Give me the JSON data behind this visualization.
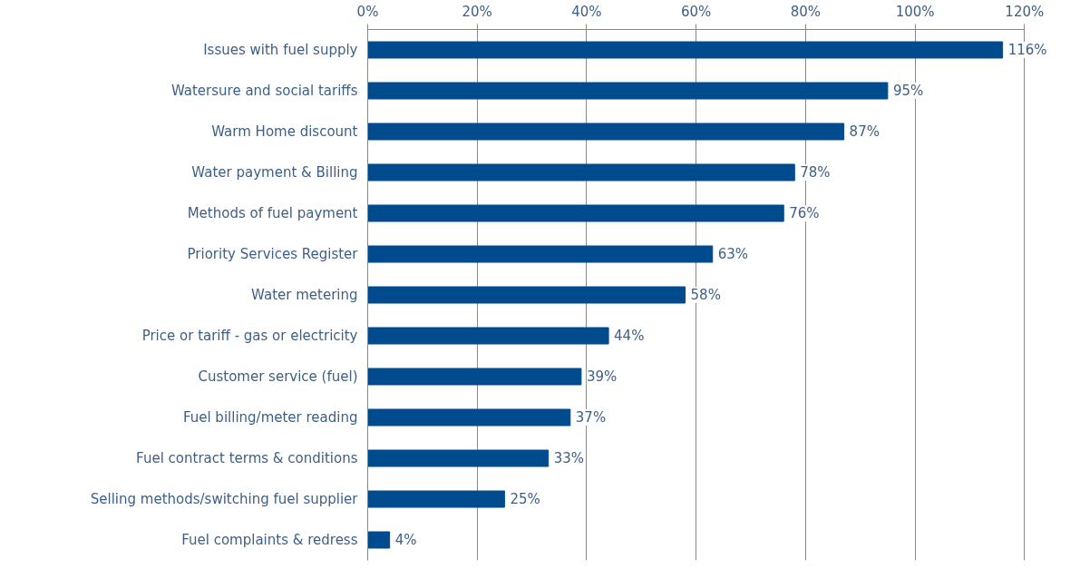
{
  "chart_data": {
    "type": "bar",
    "orientation": "horizontal",
    "categories": [
      "Issues with fuel supply",
      "Watersure and social tariffs",
      "Warm Home discount",
      "Water payment & Billing",
      "Methods of fuel payment",
      "Priority Services Register",
      "Water metering",
      "Price or tariff - gas or electricity",
      "Customer service (fuel)",
      "Fuel billing/meter reading",
      "Fuel contract terms & conditions",
      "Selling methods/switching fuel supplier",
      "Fuel complaints & redress"
    ],
    "values": [
      116,
      95,
      87,
      78,
      76,
      63,
      58,
      44,
      39,
      37,
      33,
      25,
      4
    ],
    "value_labels": [
      "116%",
      "95%",
      "87%",
      "78%",
      "76%",
      "63%",
      "58%",
      "44%",
      "39%",
      "37%",
      "33%",
      "25%",
      "4%"
    ],
    "color": "#004b8d",
    "xlim": [
      0,
      120
    ],
    "xticks": [
      {
        "value": 0,
        "label": "0%"
      },
      {
        "value": 20,
        "label": "20%"
      },
      {
        "value": 40,
        "label": "40%"
      },
      {
        "value": 60,
        "label": "60%"
      },
      {
        "value": 80,
        "label": "80%"
      },
      {
        "value": 100,
        "label": "100%"
      },
      {
        "value": 120,
        "label": "120%"
      }
    ],
    "grid": "x"
  }
}
